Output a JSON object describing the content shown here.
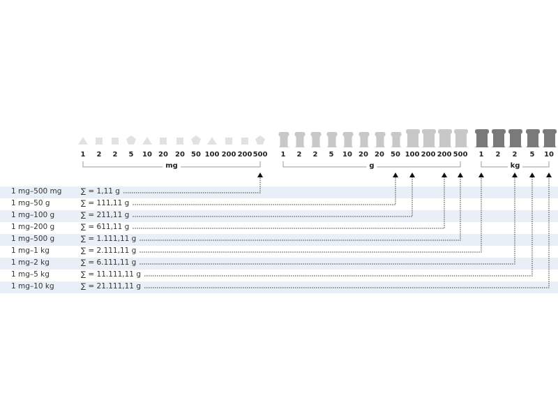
{
  "groups": [
    {
      "unit": "mg",
      "values": [
        "1",
        "2",
        "2",
        "5",
        "10",
        "20",
        "20",
        "50",
        "100",
        "200",
        "200",
        "500"
      ],
      "shapes": [
        "triangle",
        "square",
        "square",
        "pentagon",
        "triangle",
        "square",
        "square",
        "pentagon",
        "triangle",
        "square",
        "square",
        "pentagon"
      ],
      "color": "#e2e2e2"
    },
    {
      "unit": "g",
      "values": [
        "1",
        "2",
        "2",
        "5",
        "10",
        "20",
        "20",
        "50",
        "100",
        "200",
        "200",
        "500"
      ],
      "shapes": [
        "weight",
        "weight",
        "weight",
        "weight",
        "weight",
        "weight",
        "weight",
        "weight",
        "weight",
        "weight",
        "weight",
        "weight"
      ],
      "color": "#c8c8c8"
    },
    {
      "unit": "kg",
      "values": [
        "1",
        "2",
        "2",
        "5",
        "10"
      ],
      "shapes": [
        "weight",
        "weight",
        "weight",
        "weight",
        "weight"
      ],
      "color": "#7a7a7a"
    }
  ],
  "rows": [
    {
      "range": "1 mg–500 mg",
      "sum": "∑ = 1,11 g",
      "target": "mg 500"
    },
    {
      "range": "1 mg–50 g",
      "sum": "∑ = 111,11 g",
      "target": "g 50"
    },
    {
      "range": "1 mg–100 g",
      "sum": "∑ = 211,11 g",
      "target": "g 100"
    },
    {
      "range": "1 mg–200 g",
      "sum": "∑ = 611,11 g",
      "target": "g 200"
    },
    {
      "range": "1 mg–500 g",
      "sum": "∑ = 1.111,11 g",
      "target": "g 500"
    },
    {
      "range": "1 mg–1 kg",
      "sum": "∑ = 2.111,11 g",
      "target": "kg 1"
    },
    {
      "range": "1 mg–2 kg",
      "sum": "∑ = 6.111,11 g",
      "target": "kg 2"
    },
    {
      "range": "1 mg–5 kg",
      "sum": "∑ = 11.111,11 g",
      "target": "kg 5"
    },
    {
      "range": "1 mg–10 kg",
      "sum": "∑ = 21.111,11 g",
      "target": "kg 10"
    }
  ],
  "colors": {
    "row_alt": "#e8eff6",
    "line": "#333333"
  }
}
